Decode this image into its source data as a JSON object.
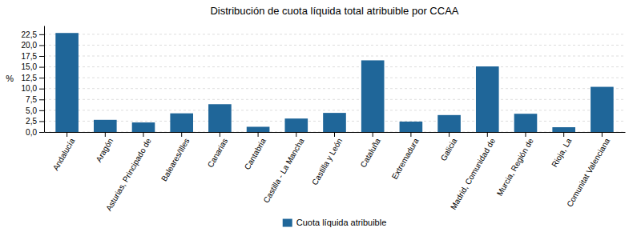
{
  "chart_data": {
    "type": "bar",
    "title": "Distribución de cuota líquida total atribuible por CCAA",
    "y_label": "%",
    "categories": [
      "Andalucía",
      "Aragón",
      "Asturias, Principado de",
      "Baleares/Illes",
      "Canarias",
      "Cantabria",
      "Castilla - La Mancha",
      "Castilla y León",
      "Cataluña",
      "Extremadura",
      "Galicia",
      "Madrid, Comunidad de",
      "Murcia, Región de",
      "Rioja, La",
      "Comunitat Valenciana"
    ],
    "series": [
      {
        "name": "Cuota líquida atribuible",
        "color": "#1F6699",
        "values": [
          22.8,
          2.8,
          2.2,
          4.3,
          6.4,
          1.2,
          3.1,
          4.4,
          16.5,
          2.4,
          3.9,
          15.1,
          4.2,
          1.1,
          10.4
        ]
      }
    ],
    "ylim": [
      0,
      24.5
    ],
    "yticks": [
      {
        "value": 0.0,
        "label": "0,0"
      },
      {
        "value": 2.5,
        "label": "2,5"
      },
      {
        "value": 5.0,
        "label": "5,0"
      },
      {
        "value": 7.5,
        "label": "7,5"
      },
      {
        "value": 10.0,
        "label": "10,0"
      },
      {
        "value": 12.5,
        "label": "12,5"
      },
      {
        "value": 15.0,
        "label": "15,0"
      },
      {
        "value": 17.5,
        "label": "17,5"
      },
      {
        "value": 20.0,
        "label": "20,0"
      },
      {
        "value": 22.5,
        "label": "22,5"
      }
    ],
    "grid": true,
    "legend": "bottom"
  }
}
